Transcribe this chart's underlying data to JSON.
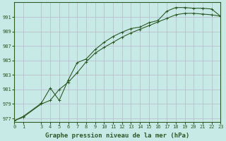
{
  "title": "Graphe pression niveau de la mer (hPa)",
  "background_color": "#c8eae6",
  "grid_color": "#b8b8cc",
  "line_color": "#2d5a27",
  "line1_x": [
    0,
    1,
    3,
    4,
    5,
    6,
    7,
    8,
    9,
    10,
    11,
    12,
    13,
    14,
    15,
    16,
    17,
    18,
    19,
    20,
    21,
    22,
    23
  ],
  "line1_y": [
    976.7,
    977.2,
    979.0,
    979.5,
    981.0,
    982.0,
    983.3,
    984.8,
    986.0,
    986.8,
    987.5,
    988.2,
    988.8,
    989.3,
    989.8,
    990.3,
    990.8,
    991.3,
    991.5,
    991.5,
    991.4,
    991.3,
    991.1
  ],
  "line2_x": [
    0,
    1,
    3,
    4,
    5,
    6,
    7,
    8,
    9,
    10,
    11,
    12,
    13,
    14,
    15,
    16,
    17,
    18,
    19,
    20,
    21,
    22,
    23
  ],
  "line2_y": [
    976.7,
    977.3,
    979.1,
    981.2,
    979.5,
    982.3,
    984.7,
    985.2,
    986.5,
    987.5,
    988.3,
    988.9,
    989.4,
    989.6,
    990.2,
    990.5,
    991.8,
    992.3,
    992.3,
    992.2,
    992.2,
    992.1,
    991.1
  ],
  "xlim": [
    0,
    23
  ],
  "ylim": [
    976.5,
    993.0
  ],
  "yticks": [
    977,
    979,
    981,
    983,
    985,
    987,
    989,
    991
  ],
  "xticks": [
    0,
    1,
    3,
    4,
    5,
    6,
    7,
    8,
    9,
    10,
    11,
    12,
    13,
    14,
    15,
    16,
    17,
    18,
    19,
    20,
    21,
    22,
    23
  ],
  "marker": "+",
  "marker_size": 3.5,
  "linewidth": 0.8,
  "title_fontsize": 6.5,
  "tick_fontsize": 5.0
}
